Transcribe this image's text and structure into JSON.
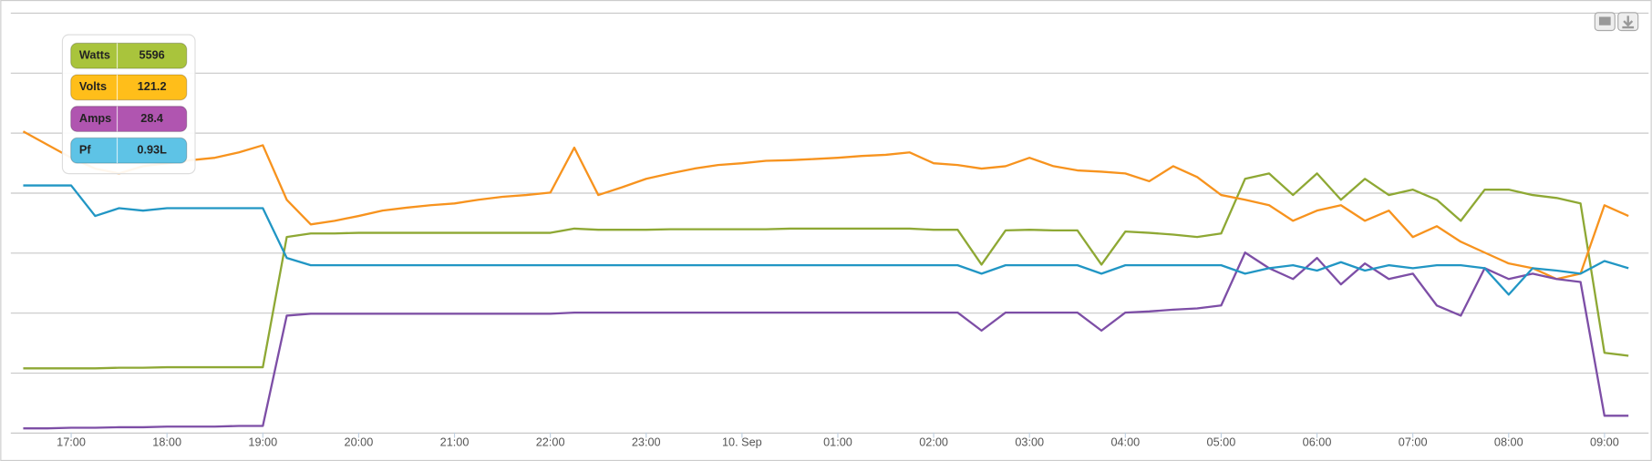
{
  "chart_data": {
    "type": "line",
    "x": [
      16.5,
      16.75,
      17,
      17.25,
      17.5,
      17.75,
      18,
      18.25,
      18.5,
      18.75,
      19,
      19.25,
      19.5,
      19.75,
      20,
      20.25,
      20.5,
      20.75,
      21,
      21.25,
      21.5,
      21.75,
      22,
      22.25,
      22.5,
      22.75,
      23,
      23.25,
      23.5,
      23.75,
      24,
      24.25,
      24.5,
      24.75,
      25,
      25.25,
      25.5,
      25.75,
      26,
      26.25,
      26.5,
      26.75,
      27,
      27.25,
      27.5,
      27.75,
      28,
      28.25,
      28.5,
      28.75,
      29,
      29.25,
      29.5,
      29.75,
      30,
      30.25,
      30.5,
      30.75,
      31,
      31.25,
      31.5,
      31.75,
      32,
      32.25,
      32.5,
      32.75,
      33,
      33.25
    ],
    "xlim": [
      16.37,
      33.46
    ],
    "xticks": [
      {
        "value": 17,
        "label": "17:00"
      },
      {
        "value": 18,
        "label": "18:00"
      },
      {
        "value": 19,
        "label": "19:00"
      },
      {
        "value": 20,
        "label": "20:00"
      },
      {
        "value": 21,
        "label": "21:00"
      },
      {
        "value": 22,
        "label": "22:00"
      },
      {
        "value": 23,
        "label": "23:00"
      },
      {
        "value": 24,
        "label": "10. Sep"
      },
      {
        "value": 25,
        "label": "01:00"
      },
      {
        "value": 26,
        "label": "02:00"
      },
      {
        "value": 27,
        "label": "03:00"
      },
      {
        "value": 28,
        "label": "04:00"
      },
      {
        "value": 29,
        "label": "05:00"
      },
      {
        "value": 30,
        "label": "06:00"
      },
      {
        "value": 31,
        "label": "07:00"
      },
      {
        "value": 32,
        "label": "08:00"
      },
      {
        "value": 33,
        "label": "09:00"
      }
    ],
    "ylim": [
      0,
      7
    ],
    "yticks": [
      0,
      1,
      2,
      3,
      4,
      5,
      6,
      7
    ],
    "grid": true,
    "series": [
      {
        "name": "Watts",
        "color": "#8ea834",
        "values": [
          1.07,
          1.07,
          1.07,
          1.07,
          1.08,
          1.08,
          1.09,
          1.09,
          1.09,
          1.09,
          1.09,
          3.26,
          3.32,
          3.32,
          3.33,
          3.33,
          3.33,
          3.33,
          3.33,
          3.33,
          3.33,
          3.33,
          3.33,
          3.4,
          3.38,
          3.38,
          3.38,
          3.39,
          3.39,
          3.39,
          3.39,
          3.39,
          3.4,
          3.4,
          3.4,
          3.4,
          3.4,
          3.4,
          3.38,
          3.38,
          2.8,
          3.37,
          3.38,
          3.37,
          3.37,
          2.8,
          3.35,
          3.33,
          3.3,
          3.26,
          3.32,
          4.23,
          4.32,
          3.96,
          4.32,
          3.88,
          4.23,
          3.96,
          4.05,
          3.88,
          3.53,
          4.05,
          4.05,
          3.96,
          3.91,
          3.82,
          1.33,
          1.28
        ]
      },
      {
        "name": "Volts",
        "color": "#f7931e",
        "values": [
          5.02,
          4.8,
          4.58,
          4.4,
          4.32,
          4.44,
          4.49,
          4.54,
          4.58,
          4.67,
          4.79,
          3.88,
          3.47,
          3.53,
          3.61,
          3.7,
          3.75,
          3.79,
          3.82,
          3.88,
          3.93,
          3.96,
          4.0,
          4.75,
          3.96,
          4.09,
          4.23,
          4.32,
          4.4,
          4.46,
          4.49,
          4.53,
          4.54,
          4.56,
          4.58,
          4.61,
          4.63,
          4.67,
          4.49,
          4.46,
          4.4,
          4.44,
          4.58,
          4.44,
          4.37,
          4.35,
          4.32,
          4.19,
          4.44,
          4.26,
          3.96,
          3.88,
          3.79,
          3.53,
          3.7,
          3.79,
          3.53,
          3.7,
          3.26,
          3.44,
          3.18,
          3.0,
          2.82,
          2.74,
          2.56,
          2.65,
          3.79,
          3.61
        ]
      },
      {
        "name": "Amps",
        "color": "#7d4ea6",
        "values": [
          0.07,
          0.07,
          0.08,
          0.08,
          0.09,
          0.09,
          0.1,
          0.1,
          0.1,
          0.11,
          0.11,
          1.95,
          1.98,
          1.98,
          1.98,
          1.98,
          1.98,
          1.98,
          1.98,
          1.98,
          1.98,
          1.98,
          1.98,
          2.0,
          2.0,
          2.0,
          2.0,
          2.0,
          2.0,
          2.0,
          2.0,
          2.0,
          2.0,
          2.0,
          2.0,
          2.0,
          2.0,
          2.0,
          2.0,
          2.0,
          1.7,
          2.0,
          2.0,
          2.0,
          2.0,
          1.7,
          2.0,
          2.02,
          2.05,
          2.07,
          2.12,
          3.0,
          2.74,
          2.56,
          2.91,
          2.47,
          2.82,
          2.56,
          2.65,
          2.12,
          1.95,
          2.74,
          2.56,
          2.65,
          2.56,
          2.51,
          0.28,
          0.28
        ]
      },
      {
        "name": "Pf",
        "color": "#2196c4",
        "values": [
          4.12,
          4.12,
          4.12,
          3.61,
          3.74,
          3.7,
          3.74,
          3.74,
          3.74,
          3.74,
          3.74,
          2.91,
          2.79,
          2.79,
          2.79,
          2.79,
          2.79,
          2.79,
          2.79,
          2.79,
          2.79,
          2.79,
          2.79,
          2.79,
          2.79,
          2.79,
          2.79,
          2.79,
          2.79,
          2.79,
          2.79,
          2.79,
          2.79,
          2.79,
          2.79,
          2.79,
          2.79,
          2.79,
          2.79,
          2.79,
          2.65,
          2.79,
          2.79,
          2.79,
          2.79,
          2.65,
          2.79,
          2.79,
          2.79,
          2.79,
          2.79,
          2.65,
          2.74,
          2.79,
          2.7,
          2.84,
          2.7,
          2.79,
          2.74,
          2.79,
          2.79,
          2.74,
          2.3,
          2.74,
          2.7,
          2.65,
          2.86,
          2.74
        ]
      }
    ],
    "tooltip_values": [
      5596,
      121.2,
      28.4,
      "0.93L"
    ],
    "tooltip_colors": [
      "#a9c43c",
      "#ffbe1a",
      "#b055b0",
      "#5ec3e6"
    ]
  }
}
